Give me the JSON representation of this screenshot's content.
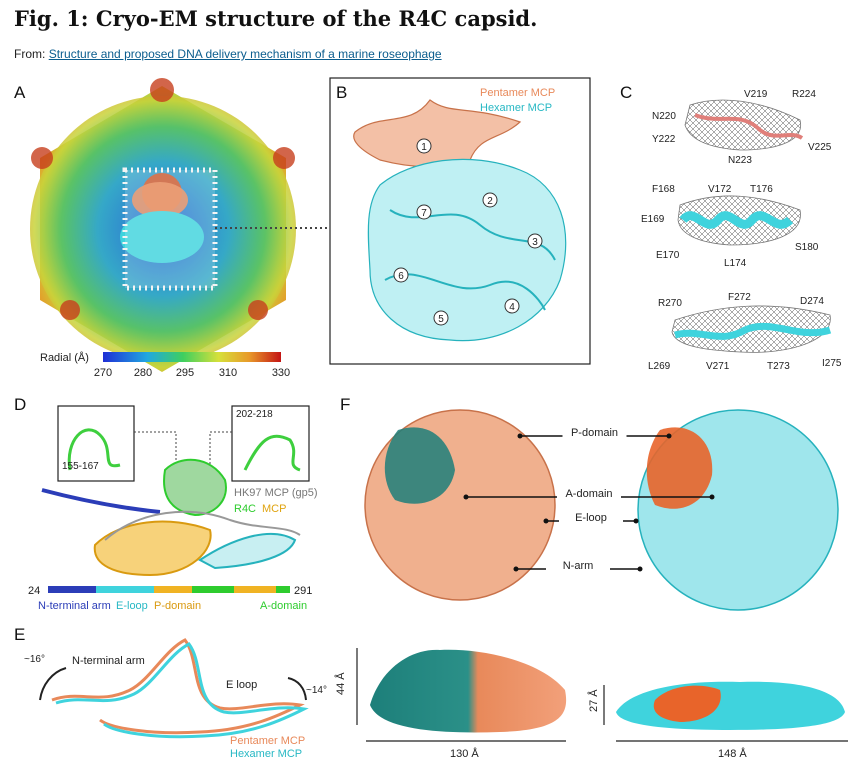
{
  "header": {
    "title": "Fig. 1: Cryo-EM structure of the R4C capsid.",
    "from_label": "From:",
    "source_link": "Structure and proposed DNA delivery mechanism of a marine roseophage"
  },
  "panels": {
    "a": {
      "label": "A",
      "colorbar_title": "Radial (Å)",
      "colorbar_ticks": [
        "270",
        "280",
        "295",
        "310",
        "330"
      ]
    },
    "b": {
      "label": "B",
      "legend": [
        "Pentamer MCP",
        "Hexamer MCP"
      ],
      "subunits": [
        "1",
        "2",
        "3",
        "4",
        "5",
        "6",
        "7"
      ]
    },
    "c": {
      "label": "C",
      "group1": [
        "V219",
        "R224",
        "N220",
        "Y222",
        "N223",
        "V225"
      ],
      "group2": [
        "F168",
        "V172",
        "T176",
        "E169",
        "E170",
        "L174",
        "S180"
      ],
      "group3": [
        "R270",
        "F272",
        "D274",
        "L269",
        "V271",
        "T273",
        "I275"
      ]
    },
    "d": {
      "label": "D",
      "inset_left": "155-167",
      "inset_right": "202-218",
      "hk97_label": "HK97 MCP (gp5)",
      "r4c_label": "R4C",
      "mcp_label": "MCP",
      "bar_start": "24",
      "bar_end": "291",
      "domains": [
        "N-terminal arm",
        "E-loop",
        "P-domain",
        "A-domain"
      ]
    },
    "e": {
      "label": "E",
      "angle_left": "~16°",
      "angle_right": "~14°",
      "nterm_label": "N-terminal arm",
      "eloop_label": "E loop",
      "legend": [
        "Pentamer MCP",
        "Hexamer MCP"
      ]
    },
    "f": {
      "label": "F",
      "domain_labels": [
        "P-domain",
        "A-domain",
        "E-loop",
        "N-arm"
      ],
      "pent_height": "44 Å",
      "pent_width": "130 Å",
      "hex_height": "27 Å",
      "hex_width": "148 Å"
    }
  },
  "colors": {
    "pentamer": "#e88a5f",
    "hexamer": "#3fd3dd",
    "nterm": "#2b3db8",
    "eloop": "#3fd3dd",
    "pdomain": "#f0b323",
    "adomain": "#2ecc2e",
    "link": "#0b5d8e"
  }
}
